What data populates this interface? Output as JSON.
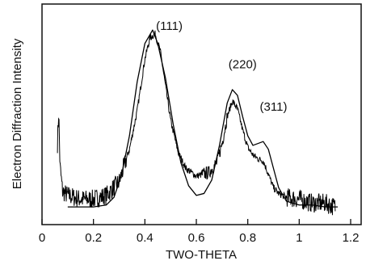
{
  "chart_data": {
    "type": "line",
    "title": "",
    "xlabel": "TWO-THETA",
    "ylabel": "Electron Diffraction Intensity",
    "xlim": [
      0,
      1.2
    ],
    "ylim": [
      0,
      1
    ],
    "x_ticks": [
      0,
      0.2,
      0.4,
      0.6,
      0.8,
      1,
      1.2
    ],
    "x_tick_labels": [
      "0",
      "0.2",
      "0.4",
      "0.6",
      "0.8",
      "1",
      "1.2"
    ],
    "y_ticks_shown": false,
    "grid": false,
    "legend": "none",
    "series": [
      {
        "style": "noisy",
        "color": "#000000",
        "x": [
          0.06,
          0.065,
          0.07,
          0.08,
          0.1,
          0.15,
          0.2,
          0.25,
          0.3,
          0.34,
          0.37,
          0.4,
          0.42,
          0.44,
          0.46,
          0.48,
          0.5,
          0.53,
          0.56,
          0.6,
          0.65,
          0.68,
          0.7,
          0.72,
          0.74,
          0.76,
          0.78,
          0.8,
          0.82,
          0.84,
          0.86,
          0.88,
          0.9,
          0.92,
          0.95,
          1.0,
          1.05,
          1.1,
          1.14
        ],
        "y": [
          0.38,
          0.55,
          0.26,
          0.13,
          0.11,
          0.09,
          0.09,
          0.11,
          0.18,
          0.35,
          0.55,
          0.82,
          0.93,
          0.95,
          0.86,
          0.68,
          0.5,
          0.33,
          0.25,
          0.21,
          0.23,
          0.28,
          0.38,
          0.52,
          0.6,
          0.56,
          0.45,
          0.36,
          0.32,
          0.3,
          0.29,
          0.22,
          0.15,
          0.12,
          0.1,
          0.09,
          0.07,
          0.07,
          0.05
        ]
      },
      {
        "style": "smooth",
        "color": "#000000",
        "x": [
          0.1,
          0.15,
          0.2,
          0.25,
          0.28,
          0.31,
          0.34,
          0.37,
          0.4,
          0.43,
          0.45,
          0.48,
          0.51,
          0.54,
          0.57,
          0.6,
          0.63,
          0.66,
          0.69,
          0.72,
          0.74,
          0.76,
          0.78,
          0.8,
          0.82,
          0.84,
          0.86,
          0.88,
          0.9,
          0.92,
          0.95,
          1.0,
          1.05,
          1.1,
          1.15
        ],
        "y": [
          0.05,
          0.05,
          0.05,
          0.06,
          0.1,
          0.22,
          0.42,
          0.7,
          0.9,
          0.97,
          0.9,
          0.72,
          0.48,
          0.28,
          0.16,
          0.11,
          0.12,
          0.19,
          0.37,
          0.59,
          0.66,
          0.63,
          0.52,
          0.42,
          0.37,
          0.38,
          0.39,
          0.35,
          0.25,
          0.15,
          0.08,
          0.06,
          0.06,
          0.05,
          0.05
        ]
      }
    ],
    "annotations": [
      {
        "text": "(111)",
        "x": 0.495,
        "y": 0.97
      },
      {
        "text": "(220)",
        "x": 0.78,
        "y": 0.77
      },
      {
        "text": "(311)",
        "x": 0.9,
        "y": 0.55
      }
    ]
  }
}
